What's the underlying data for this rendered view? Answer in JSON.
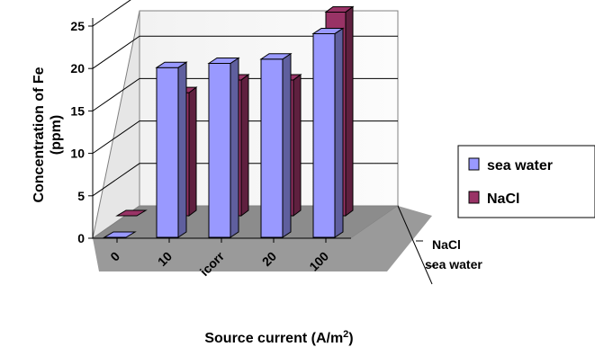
{
  "chart_data": {
    "type": "bar",
    "subtype": "3d-clustered-column",
    "categories": [
      "0",
      "10",
      "icorr",
      "20",
      "100"
    ],
    "series": [
      {
        "name": "sea water",
        "color": "#9999ff",
        "values": [
          0,
          20,
          20.5,
          21,
          24
        ]
      },
      {
        "name": "NaCl",
        "color": "#993366",
        "values": [
          0,
          14.5,
          16,
          16,
          24
        ]
      }
    ],
    "depth_labels": [
      "NaCl",
      "sea water"
    ],
    "ylim": [
      0,
      25
    ],
    "yticks": [
      "0",
      "5",
      "10",
      "15",
      "20",
      "25"
    ],
    "ylabel_line1": "Concentration of Fe",
    "ylabel_line2": "(ppm)",
    "xlabel_text": "Source current (A/m",
    "xlabel_sup": "2",
    "xlabel_close": ")",
    "grid": true,
    "legend_position": "right"
  }
}
